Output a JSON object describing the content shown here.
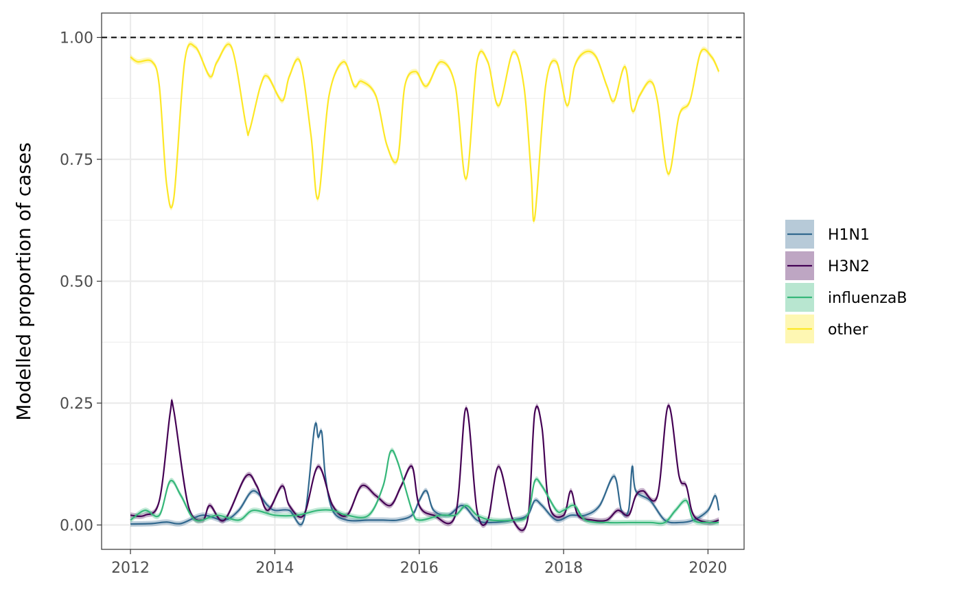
{
  "chart_data": {
    "type": "line",
    "title": "",
    "xlabel": "",
    "ylabel": "Modelled proportion of cases",
    "xlim": [
      2011.6,
      2020.5
    ],
    "ylim": [
      -0.05,
      1.05
    ],
    "x_ticks": [
      2012,
      2014,
      2016,
      2018,
      2020
    ],
    "y_ticks": [
      0.0,
      0.25,
      0.5,
      0.75,
      1.0
    ],
    "y_tick_labels": [
      "0.00",
      "0.25",
      "0.50",
      "0.75",
      "1.00"
    ],
    "grid": true,
    "reference_line": {
      "y": 1.0,
      "style": "dashed",
      "color": "#000000"
    },
    "legend_position": "right",
    "series": [
      {
        "name": "H1N1",
        "color": "#31688e",
        "x": [
          2012.0,
          2012.3,
          2012.5,
          2012.7,
          2013.0,
          2013.3,
          2013.5,
          2013.7,
          2013.9,
          2014.0,
          2014.2,
          2014.4,
          2014.55,
          2014.6,
          2014.65,
          2014.7,
          2014.8,
          2015.0,
          2015.3,
          2015.5,
          2015.7,
          2015.9,
          2016.0,
          2016.1,
          2016.2,
          2016.4,
          2016.6,
          2016.8,
          2017.0,
          2017.3,
          2017.5,
          2017.6,
          2017.7,
          2017.9,
          2018.1,
          2018.3,
          2018.5,
          2018.7,
          2018.8,
          2018.9,
          2018.95,
          2019.0,
          2019.2,
          2019.4,
          2019.6,
          2019.8,
          2020.0,
          2020.1,
          2020.15
        ],
        "values": [
          0.002,
          0.003,
          0.006,
          0.003,
          0.02,
          0.01,
          0.03,
          0.07,
          0.04,
          0.03,
          0.03,
          0.01,
          0.2,
          0.18,
          0.19,
          0.1,
          0.03,
          0.01,
          0.01,
          0.01,
          0.01,
          0.02,
          0.05,
          0.07,
          0.03,
          0.02,
          0.04,
          0.01,
          0.005,
          0.01,
          0.02,
          0.05,
          0.04,
          0.01,
          0.02,
          0.02,
          0.04,
          0.1,
          0.03,
          0.03,
          0.12,
          0.07,
          0.05,
          0.01,
          0.005,
          0.01,
          0.03,
          0.06,
          0.03
        ]
      },
      {
        "name": "H3N2",
        "color": "#440154",
        "x": [
          2012.0,
          2012.2,
          2012.4,
          2012.55,
          2012.6,
          2012.8,
          2013.0,
          2013.1,
          2013.3,
          2013.6,
          2013.75,
          2013.9,
          2014.1,
          2014.2,
          2014.4,
          2014.6,
          2014.8,
          2015.0,
          2015.2,
          2015.4,
          2015.6,
          2015.75,
          2015.9,
          2016.0,
          2016.2,
          2016.5,
          2016.65,
          2016.8,
          2016.95,
          2017.1,
          2017.3,
          2017.5,
          2017.6,
          2017.7,
          2017.8,
          2018.0,
          2018.1,
          2018.2,
          2018.4,
          2018.6,
          2018.75,
          2018.9,
          2019.0,
          2019.1,
          2019.3,
          2019.45,
          2019.6,
          2019.7,
          2019.8,
          2020.0,
          2020.15
        ],
        "values": [
          0.02,
          0.02,
          0.05,
          0.23,
          0.235,
          0.04,
          0.01,
          0.04,
          0.01,
          0.1,
          0.08,
          0.03,
          0.08,
          0.04,
          0.02,
          0.12,
          0.04,
          0.02,
          0.08,
          0.06,
          0.04,
          0.08,
          0.12,
          0.04,
          0.02,
          0.02,
          0.24,
          0.03,
          0.01,
          0.12,
          0.01,
          0.01,
          0.23,
          0.2,
          0.04,
          0.02,
          0.07,
          0.02,
          0.01,
          0.01,
          0.03,
          0.02,
          0.06,
          0.07,
          0.06,
          0.245,
          0.1,
          0.08,
          0.02,
          0.005,
          0.01
        ]
      },
      {
        "name": "influenzaB",
        "color": "#35b779",
        "x": [
          2012.0,
          2012.2,
          2012.4,
          2012.55,
          2012.7,
          2012.9,
          2013.2,
          2013.5,
          2013.7,
          2014.0,
          2014.3,
          2014.6,
          2014.8,
          2015.0,
          2015.3,
          2015.5,
          2015.6,
          2015.7,
          2015.9,
          2016.0,
          2016.3,
          2016.5,
          2016.65,
          2016.8,
          2017.0,
          2017.3,
          2017.5,
          2017.6,
          2017.7,
          2017.9,
          2018.0,
          2018.15,
          2018.3,
          2018.6,
          2018.9,
          2019.2,
          2019.4,
          2019.55,
          2019.7,
          2019.8,
          2020.0,
          2020.15
        ],
        "values": [
          0.01,
          0.03,
          0.02,
          0.09,
          0.06,
          0.01,
          0.02,
          0.01,
          0.03,
          0.02,
          0.02,
          0.03,
          0.03,
          0.02,
          0.02,
          0.08,
          0.15,
          0.13,
          0.03,
          0.01,
          0.02,
          0.02,
          0.04,
          0.02,
          0.01,
          0.01,
          0.02,
          0.09,
          0.08,
          0.03,
          0.03,
          0.04,
          0.01,
          0.005,
          0.005,
          0.005,
          0.005,
          0.03,
          0.05,
          0.01,
          0.005,
          0.005
        ]
      },
      {
        "name": "other",
        "color": "#fde725",
        "x": [
          2012.0,
          2012.1,
          2012.3,
          2012.4,
          2012.5,
          2012.6,
          2012.75,
          2012.9,
          2013.1,
          2013.2,
          2013.4,
          2013.6,
          2013.65,
          2013.8,
          2013.9,
          2014.1,
          2014.2,
          2014.35,
          2014.5,
          2014.6,
          2014.75,
          2014.95,
          2015.1,
          2015.2,
          2015.4,
          2015.55,
          2015.7,
          2015.8,
          2015.95,
          2016.1,
          2016.3,
          2016.5,
          2016.65,
          2016.8,
          2016.95,
          2017.1,
          2017.3,
          2017.45,
          2017.55,
          2017.6,
          2017.75,
          2017.9,
          2018.05,
          2018.15,
          2018.3,
          2018.45,
          2018.6,
          2018.7,
          2018.85,
          2018.95,
          2019.05,
          2019.2,
          2019.3,
          2019.45,
          2019.6,
          2019.75,
          2019.9,
          2020.05,
          2020.15
        ],
        "values": [
          0.96,
          0.95,
          0.95,
          0.9,
          0.7,
          0.67,
          0.95,
          0.98,
          0.92,
          0.95,
          0.98,
          0.82,
          0.81,
          0.9,
          0.92,
          0.87,
          0.92,
          0.95,
          0.8,
          0.67,
          0.88,
          0.95,
          0.9,
          0.91,
          0.88,
          0.78,
          0.75,
          0.9,
          0.93,
          0.9,
          0.95,
          0.9,
          0.71,
          0.95,
          0.95,
          0.86,
          0.97,
          0.9,
          0.72,
          0.63,
          0.9,
          0.95,
          0.86,
          0.94,
          0.97,
          0.96,
          0.9,
          0.87,
          0.94,
          0.85,
          0.88,
          0.91,
          0.87,
          0.72,
          0.84,
          0.87,
          0.97,
          0.96,
          0.93
        ]
      }
    ]
  }
}
